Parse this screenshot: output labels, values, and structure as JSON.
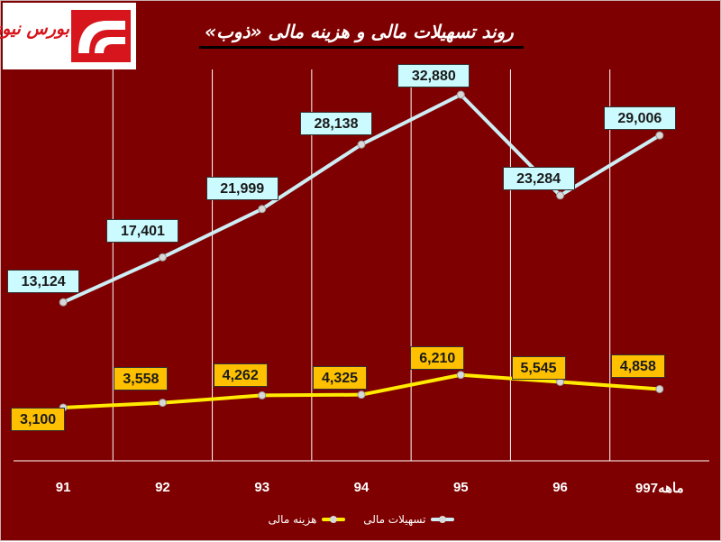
{
  "logo": {
    "text": "بورس نیوز"
  },
  "chart_data": {
    "type": "line",
    "title": "روند تسهیلات مالی و هزینه مالی «ذوب»",
    "categories": [
      "91",
      "92",
      "93",
      "94",
      "95",
      "96",
      "9ماهه97"
    ],
    "series": [
      {
        "name": "تسهیلات مالی",
        "color": "#cdeef5",
        "values": [
          13124,
          17401,
          21999,
          28138,
          32880,
          23284,
          29006
        ],
        "labels": [
          "13,124",
          "17,401",
          "21,999",
          "28,138",
          "32,880",
          "23,284",
          "29,006"
        ]
      },
      {
        "name": "هزینه مالی",
        "color": "#ffea00",
        "values": [
          3100,
          3558,
          4262,
          4325,
          6210,
          5545,
          4858
        ],
        "labels": [
          "3,100",
          "3,558",
          "4,262",
          "4,325",
          "6,210",
          "5,545",
          "4,858"
        ]
      }
    ],
    "ylim": [
      0,
      35000
    ],
    "grid": "vertical",
    "legend": "bottom-center",
    "marker_color": "#d8d8d8"
  }
}
